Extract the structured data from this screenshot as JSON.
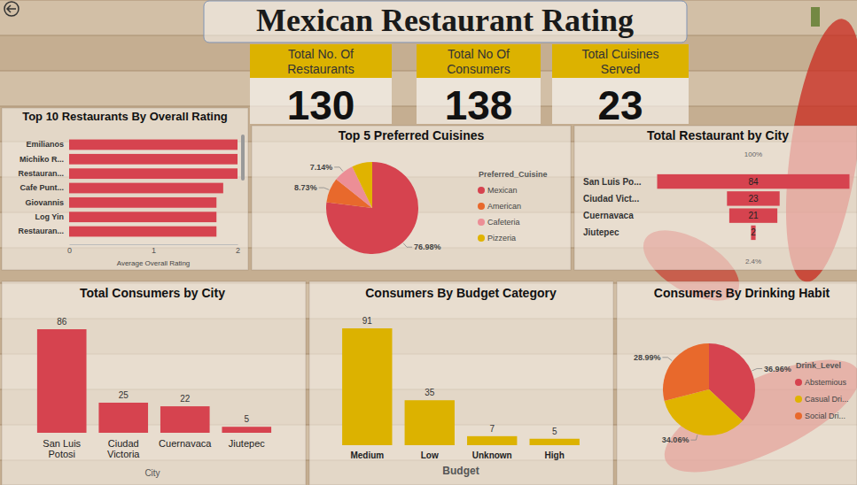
{
  "title": "Mexican Restaurant Rating",
  "cards": [
    {
      "label": "Total No. Of\nRestaurants",
      "value": 130
    },
    {
      "label": "Total No Of\nConsumers",
      "value": 138
    },
    {
      "label": "Total Cuisines\nServed",
      "value": 23
    }
  ],
  "chart_data": [
    {
      "type": "bar",
      "orientation": "horizontal",
      "title": "Top 10 Restaurants By Overall Rating",
      "categories": [
        "Emilianos",
        "Michiko R...",
        "Restauran...",
        "Cafe Punt...",
        "Giovannis",
        "Log Yin",
        "Restauran..."
      ],
      "values": [
        2,
        2,
        2,
        1.83,
        1.75,
        1.75,
        1.75
      ],
      "color": "#d6434f",
      "xlabel": "Average Overall Rating",
      "xlim": [
        0,
        2
      ],
      "xticks": [
        0,
        1,
        2
      ]
    },
    {
      "type": "pie",
      "title": "Top 5 Preferred Cuisines",
      "legend_title": "Preferred_Cuisine",
      "legend": "right",
      "categories": [
        "Mexican",
        "American",
        "Cafeteria",
        "Pizzeria"
      ],
      "values": [
        76.98,
        8.73,
        7.14,
        7.15
      ],
      "value_labels": [
        "76.98%",
        "8.73%",
        "7.14%",
        null
      ],
      "colors": [
        "#d6434f",
        "#e8692c",
        "#ec8e96",
        "#e0b300"
      ],
      "data_labels": true
    },
    {
      "type": "funnel",
      "title": "Total Restaurant by City",
      "categories": [
        "San Luis Po...",
        "Ciudad Vict...",
        "Cuernavaca",
        "Jiutepec"
      ],
      "values": [
        84,
        23,
        21,
        2
      ],
      "color": "#d6434f",
      "data_labels": true,
      "annotations": [
        "100%",
        "2.4%"
      ]
    },
    {
      "type": "bar",
      "title": "Total Consumers by City",
      "xlabel": "City",
      "categories": [
        "San Luis Potosi",
        "Ciudad Victoria",
        "Cuernavaca",
        "Jiutepec"
      ],
      "values": [
        86,
        25,
        22,
        5
      ],
      "color": "#d6434f",
      "ylim": [
        0,
        86
      ],
      "data_labels": true,
      "tick_labels": "x"
    },
    {
      "type": "bar",
      "title": "Consumers By Budget Category",
      "xlabel": "Budget",
      "categories": [
        "Medium",
        "Low",
        "Unknown",
        "High"
      ],
      "values": [
        91,
        35,
        7,
        5
      ],
      "color": "#dcb200",
      "ylim": [
        0,
        91
      ],
      "data_labels": true,
      "tick_labels": "x"
    },
    {
      "type": "pie",
      "title": "Consumers By Drinking Habit",
      "legend_title": "Drink_Level",
      "legend": "right",
      "categories": [
        "Abstemious",
        "Casual Dri...",
        "Social Dri..."
      ],
      "values": [
        36.96,
        34.06,
        28.99
      ],
      "value_labels": [
        "36.96%",
        "34.06%",
        "28.99%"
      ],
      "colors": [
        "#d6434f",
        "#e0b300",
        "#e8692c"
      ],
      "data_labels": true
    }
  ]
}
